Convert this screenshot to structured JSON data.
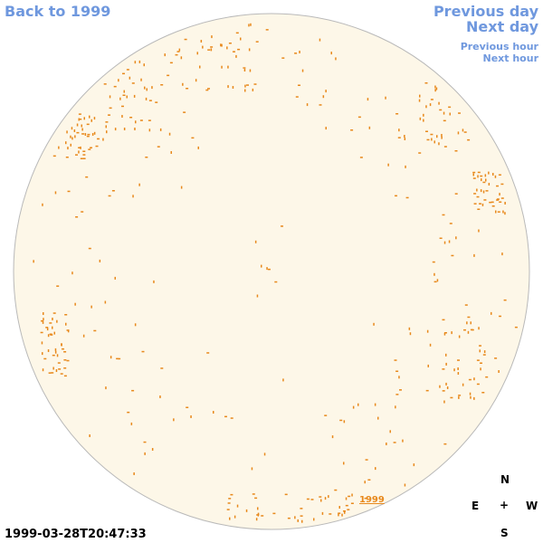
{
  "nav": {
    "back": "Back to 1999",
    "previous_day": "Previous day",
    "next_day": "Next day",
    "previous_hour": "Previous hour",
    "next_hour": "Next hour"
  },
  "map": {
    "year_label": "1999",
    "timestamp": "1999-03-28T20:47:33"
  },
  "compass": {
    "north": "N",
    "east": "E",
    "center": "+",
    "west": "W",
    "south": "S"
  },
  "colors": {
    "disk_fill": "#fdf7e8",
    "disk_stroke": "#b9b9b9",
    "feature": "#e8891c",
    "nav_link": "#6f98de"
  }
}
